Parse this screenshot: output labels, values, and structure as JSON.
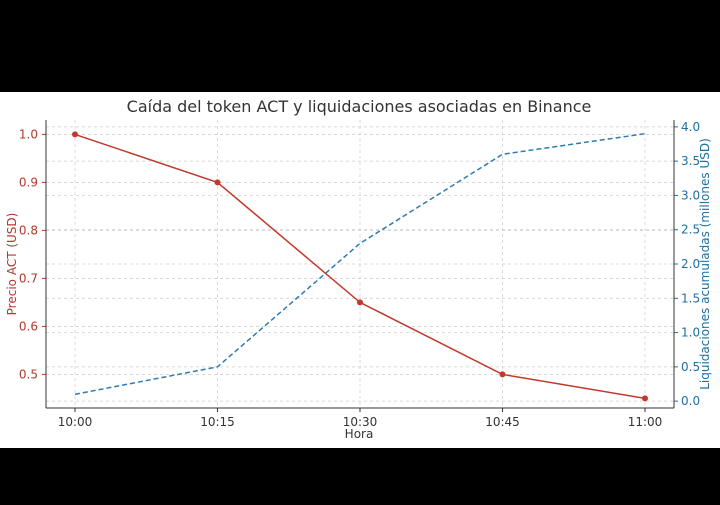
{
  "chart_data": {
    "type": "line",
    "title": "Caída del token ACT y liquidaciones asociadas en Binance",
    "xlabel": "Hora",
    "ylabel": "Precio ACT (USD)",
    "y2label": "Liquidaciones acumuladas (millones USD)",
    "categories": [
      "10:00",
      "10:15",
      "10:30",
      "10:45",
      "11:00"
    ],
    "ylim": [
      0.43,
      1.03
    ],
    "y2lim": [
      -0.1,
      4.1
    ],
    "yticks": [
      "0.5",
      "0.6",
      "0.7",
      "0.8",
      "0.9",
      "1.0"
    ],
    "y2ticks": [
      "0.0",
      "0.5",
      "1.0",
      "1.5",
      "2.0",
      "2.5",
      "3.0",
      "3.5",
      "4.0"
    ],
    "grid": true,
    "series": [
      {
        "axis": "left",
        "style": "solid",
        "marker": "circle",
        "color": "#c0392b",
        "values": [
          1.0,
          0.9,
          0.65,
          0.5,
          0.45
        ]
      },
      {
        "axis": "right",
        "style": "dashed",
        "marker": "none",
        "color": "#2e7bb0",
        "values": [
          0.1,
          0.5,
          2.3,
          3.6,
          3.9
        ]
      }
    ],
    "colors": {
      "left_axis": "#b03a2e",
      "right_axis": "#1f6fa0",
      "text": "#333333",
      "grid": "#cccccc"
    }
  }
}
